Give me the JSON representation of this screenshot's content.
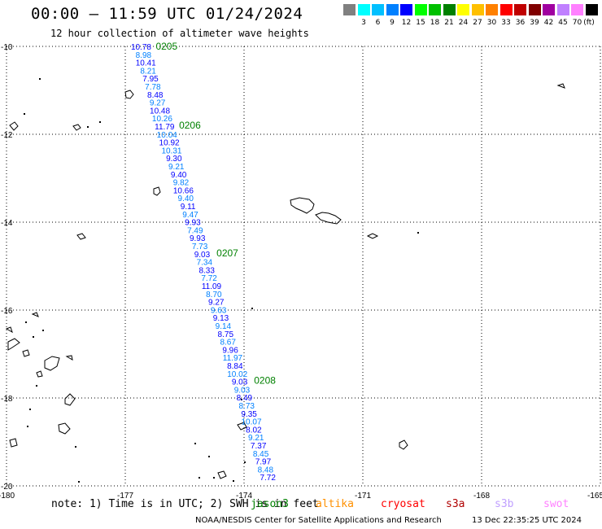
{
  "title": "00:00 – 11:59 UTC 01/24/2024",
  "subtitle": "12 hour collection of altimeter wave heights",
  "legend": {
    "unit": "(ft)",
    "items": [
      {
        "label": "",
        "color": "#808080"
      },
      {
        "label": "3",
        "color": "#00ffff"
      },
      {
        "label": "6",
        "color": "#00c0ff"
      },
      {
        "label": "9",
        "color": "#0080ff"
      },
      {
        "label": "12",
        "color": "#0000ff"
      },
      {
        "label": "15",
        "color": "#00ff00"
      },
      {
        "label": "18",
        "color": "#00c000"
      },
      {
        "label": "21",
        "color": "#008000"
      },
      {
        "label": "24",
        "color": "#ffff00"
      },
      {
        "label": "27",
        "color": "#ffc000"
      },
      {
        "label": "30",
        "color": "#ff8000"
      },
      {
        "label": "33",
        "color": "#ff0000"
      },
      {
        "label": "36",
        "color": "#c00000"
      },
      {
        "label": "39",
        "color": "#800000"
      },
      {
        "label": "42",
        "color": "#a000a0"
      },
      {
        "label": "45",
        "color": "#c080ff"
      },
      {
        "label": "70",
        "color": "#ff80ff"
      },
      {
        "label": "",
        "color": "#000000"
      }
    ]
  },
  "axes": {
    "lon_labels": [
      "-180",
      "-177",
      "-174",
      "-171",
      "-168",
      "-165"
    ],
    "lat_labels": [
      "-10",
      "-12",
      "-14",
      "-16",
      "-18",
      "-20"
    ],
    "lon_range": [
      -180,
      -165
    ],
    "lat_range": [
      -10,
      -20
    ]
  },
  "times": [
    {
      "label": "0205",
      "lat": -10.0,
      "color": "#008000"
    },
    {
      "label": "0206",
      "lat": -11.8,
      "color": "#008000"
    },
    {
      "label": "0207",
      "lat": -14.7,
      "color": "#008000"
    },
    {
      "label": "0208",
      "lat": -17.6,
      "color": "#008000"
    }
  ],
  "track": {
    "lon_top": -176.6,
    "lat_top": -10.0,
    "lon_bottom": -173.4,
    "lat_bottom": -19.8,
    "colors": [
      "#0000ff",
      "#0080ff"
    ],
    "values": [
      "10.78",
      "8.98",
      "10.41",
      "8.21",
      "7.95",
      "7.78",
      "8.48",
      "9.27",
      "10.48",
      "10.26",
      "11.79",
      "10.04",
      "10.92",
      "10.31",
      "9.30",
      "9.21",
      "9.40",
      "9.82",
      "10.66",
      "9.40",
      "9.11",
      "9.47",
      "9.93",
      "7.49",
      "9.93",
      "7.73",
      "9.03",
      "7.34",
      "8.33",
      "7.72",
      "11.09",
      "8.70",
      "9.27",
      "9.63",
      "9.13",
      "9.14",
      "8.75",
      "8.67",
      "9.96",
      "11.97",
      "8.84",
      "10.02",
      "9.03",
      "9.03",
      "8.49",
      "8.73",
      "9.35",
      "10.07",
      "8.02",
      "9.21",
      "7.37",
      "8.45",
      "7.97",
      "8.48",
      "7.72"
    ]
  },
  "note": "note: 1) Time is in UTC; 2) SWH is in feet",
  "satellites": [
    {
      "name": "jason3",
      "color": "#008000"
    },
    {
      "name": "altika",
      "color": "#ff9000"
    },
    {
      "name": "cryosat",
      "color": "#ff0000"
    },
    {
      "name": "s3a",
      "color": "#b00000"
    },
    {
      "name": "s3b",
      "color": "#c0a0ff"
    },
    {
      "name": "swot",
      "color": "#ff80ff"
    }
  ],
  "footer": "NOAA/NESDIS Center for Satellite Applications and Research",
  "credits": "13 Dec 22:35:25 UTC 2024"
}
